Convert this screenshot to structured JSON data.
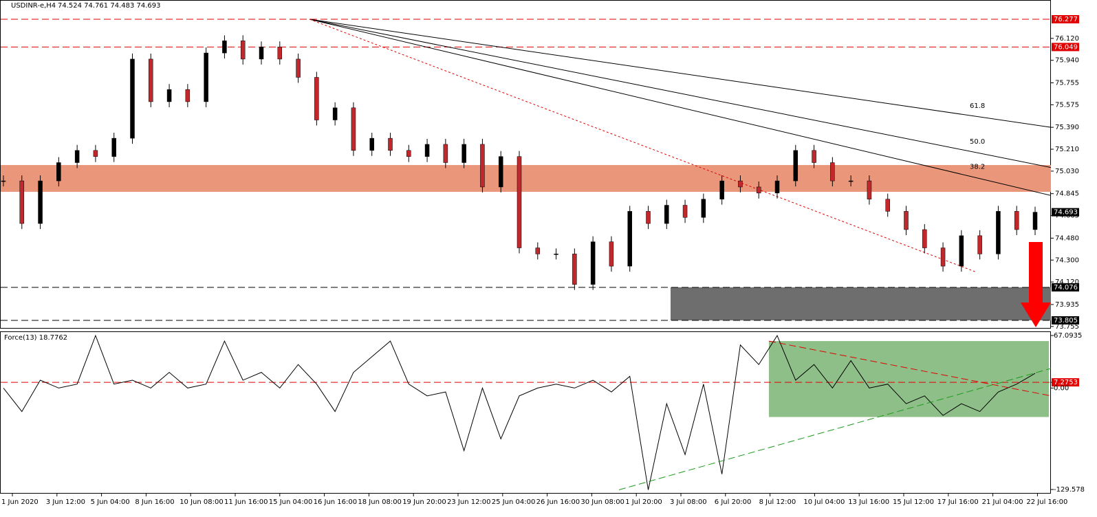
{
  "chart_data": {
    "type": "candlestick",
    "title": "USDINR-e,H4",
    "quote": "74.524 74.761 74.483 74.693",
    "values": [
      74.95,
      74.6,
      74.95,
      75.1,
      75.2,
      75.15,
      75.3,
      75.95,
      75.6,
      75.7,
      75.6,
      76.0,
      76.1,
      75.95,
      76.05,
      75.95,
      75.8,
      75.45,
      75.55,
      75.2,
      75.3,
      75.2,
      75.15,
      75.25,
      75.1,
      75.25,
      74.9,
      75.15,
      74.4,
      74.35,
      74.35,
      74.1,
      74.45,
      74.25,
      74.7,
      74.6,
      74.75,
      74.65,
      74.8,
      74.95,
      74.9,
      74.85,
      74.95,
      75.2,
      75.1,
      74.95,
      74.95,
      74.8,
      74.7,
      74.55,
      74.4,
      74.25,
      74.5,
      74.35,
      74.7,
      74.55,
      74.693
    ],
    "ylim": [
      73.737,
      76.435
    ],
    "yticks": [
      {
        "value": 76.12,
        "label": "76.120"
      },
      {
        "value": 75.94,
        "label": "75.940"
      },
      {
        "value": 75.755,
        "label": "75.755"
      },
      {
        "value": 75.575,
        "label": "75.575"
      },
      {
        "value": 75.39,
        "label": "75.390"
      },
      {
        "value": 75.21,
        "label": "75.210"
      },
      {
        "value": 75.03,
        "label": "75.030"
      },
      {
        "value": 74.845,
        "label": "74.845"
      },
      {
        "value": 74.665,
        "label": "74.665"
      },
      {
        "value": 74.48,
        "label": "74.480"
      },
      {
        "value": 74.3,
        "label": "74.300"
      },
      {
        "value": 74.12,
        "label": "74.120"
      },
      {
        "value": 73.935,
        "label": "73.935"
      },
      {
        "value": 73.755,
        "label": "73.755"
      }
    ],
    "levels": [
      {
        "value": 76.277,
        "color": "#e00000"
      },
      {
        "value": 76.049,
        "color": "#e00000"
      },
      {
        "value": 74.076,
        "color": "#000000"
      },
      {
        "value": 73.805,
        "color": "#000000"
      }
    ],
    "last": 74.693,
    "resistance_zone": [
      75.08,
      74.86
    ],
    "support_zone": [
      74.076,
      73.805
    ],
    "fan": {
      "from": 76.277,
      "lines": [
        {
          "label": "61.8",
          "to": 75.39
        },
        {
          "label": "50.0",
          "to": 75.06
        },
        {
          "label": "38.2",
          "to": 74.83
        }
      ]
    },
    "channel": {
      "from": 76.277,
      "to": 74.2
    },
    "time_labels": [
      "1 Jun 2020",
      "3 Jun 12:00",
      "5 Jun 04:00",
      "8 Jun 16:00",
      "10 Jun 08:00",
      "11 Jun 16:00",
      "15 Jun 04:00",
      "16 Jun 16:00",
      "18 Jun 08:00",
      "19 Jun 20:00",
      "23 Jun 12:00",
      "25 Jun 04:00",
      "26 Jun 16:00",
      "30 Jun 08:00",
      "1 Jul 20:00",
      "3 Jul 08:00",
      "6 Jul 20:00",
      "8 Jul 12:00",
      "10 Jul 04:00",
      "13 Jul 16:00",
      "15 Jul 12:00",
      "17 Jul 16:00",
      "21 Jul 04:00",
      "22 Jul 16:00"
    ],
    "indicator": {
      "title": "Force(13) 18.7762",
      "values": [
        0,
        -30,
        10,
        0,
        5,
        67,
        5,
        10,
        0,
        20,
        0,
        5,
        60,
        10,
        20,
        0,
        30,
        5,
        -30,
        20,
        40,
        60,
        5,
        -10,
        -5,
        -80,
        0,
        -65,
        -10,
        0,
        5,
        0,
        10,
        -5,
        15,
        -130,
        -20,
        -85,
        5,
        -110,
        55,
        30,
        67,
        10,
        30,
        0,
        35,
        0,
        5,
        -20,
        -10,
        -35,
        -20,
        -30,
        -5,
        5,
        18.7762
      ],
      "y2lim": [
        -134.85,
        72.36
      ],
      "y2ticks": [
        {
          "value": 67.0935,
          "label": "67.0935"
        },
        {
          "value": 7.2753,
          "label": "7.2753"
        },
        {
          "value": 0,
          "label": "0.00"
        },
        {
          "value": -129.578,
          "label": "-129.578"
        }
      ],
      "box": [
        60,
        -37
      ]
    }
  }
}
